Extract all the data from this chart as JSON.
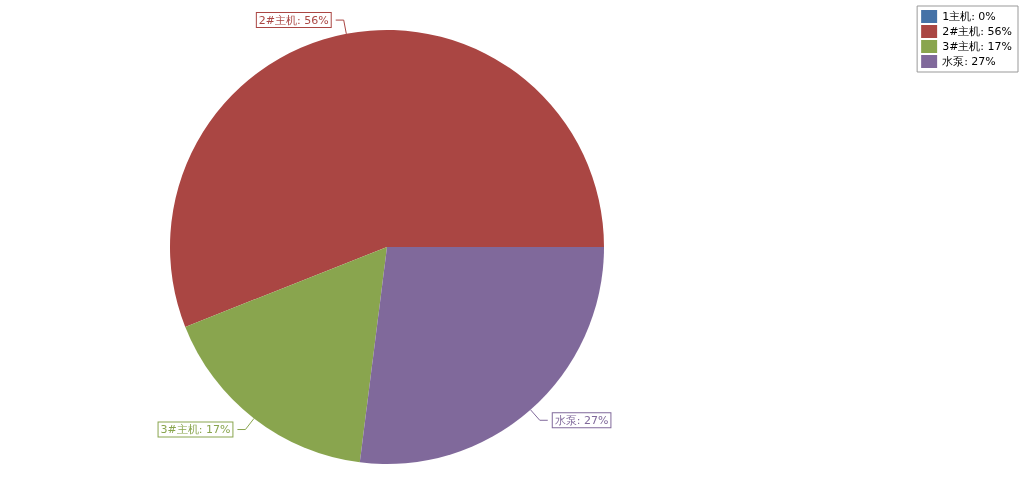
{
  "chart_data": {
    "type": "pie",
    "categories": [
      "1主机: 0%",
      "2#主机: 56%",
      "3#主机: 17%",
      "水泵: 27%"
    ],
    "values": [
      0,
      56,
      17,
      27
    ],
    "colors": [
      "#4572a7",
      "#aa4643",
      "#89a54e",
      "#80699b"
    ],
    "legend": "top right"
  }
}
